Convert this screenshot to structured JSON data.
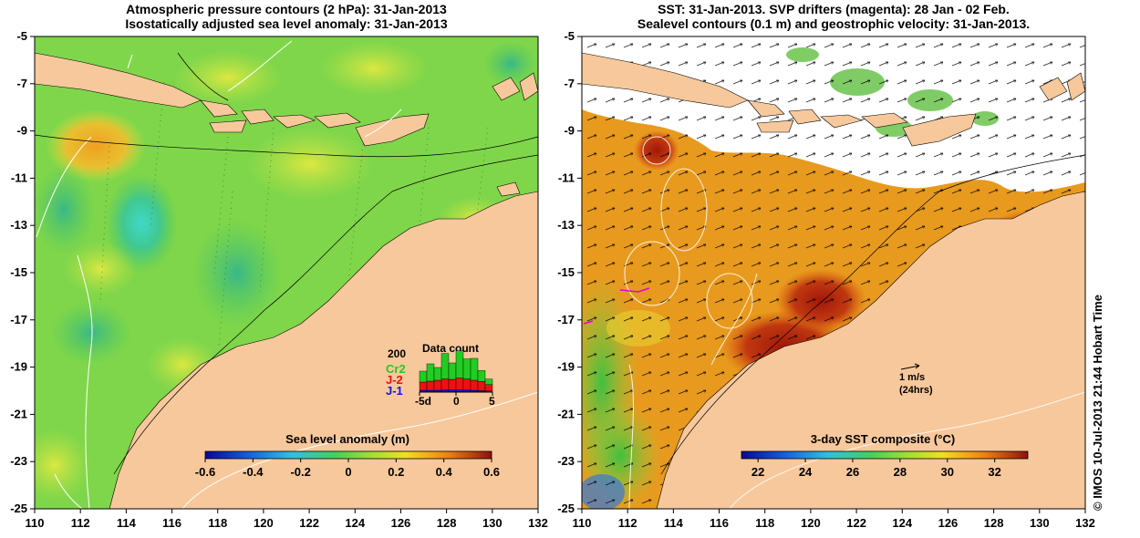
{
  "left": {
    "title_line1": "Atmospheric pressure contours (2 hPa): 31-Jan-2013",
    "title_line2": "Isostatically adjusted sea level anomaly: 31-Jan-2013",
    "colorbar_label": "Sea level anomaly (m)",
    "colorbar_ticks": [
      "-0.6",
      "-0.4",
      "-0.2",
      "0",
      "0.2",
      "0.4",
      "0.6"
    ],
    "data_count": {
      "title": "Data count",
      "max_label": "200",
      "legend": [
        {
          "label": "Cr2",
          "color": "#22cc22"
        },
        {
          "label": "J-2",
          "color": "#ee1111"
        },
        {
          "label": "J-1",
          "color": "#1111ee"
        }
      ],
      "xticks": [
        "-5d",
        "0",
        "5"
      ],
      "bins": [
        {
          "cr2": 60,
          "j2": 45,
          "j1": 10
        },
        {
          "cr2": 95,
          "j2": 50,
          "j1": 10
        },
        {
          "cr2": 70,
          "j2": 55,
          "j1": 10
        },
        {
          "cr2": 140,
          "j2": 60,
          "j1": 12
        },
        {
          "cr2": 90,
          "j2": 58,
          "j1": 12
        },
        {
          "cr2": 150,
          "j2": 65,
          "j1": 12
        },
        {
          "cr2": 110,
          "j2": 60,
          "j1": 12
        },
        {
          "cr2": 120,
          "j2": 55,
          "j1": 10
        },
        {
          "cr2": 60,
          "j2": 50,
          "j1": 8
        },
        {
          "cr2": 30,
          "j2": 35,
          "j1": 6
        }
      ]
    }
  },
  "right": {
    "title_line1": "SST: 31-Jan-2013. SVP drifters (magenta): 28 Jan - 02 Feb.",
    "title_line2": "Sealevel contours (0.1 m) and geostrophic velocity: 31-Jan-2013.",
    "colorbar_label": "3-day SST composite (°C)",
    "colorbar_ticks": [
      "22",
      "24",
      "26",
      "28",
      "30",
      "32"
    ],
    "scale_arrow_label1": "1 m/s",
    "scale_arrow_label2": "(24hrs)"
  },
  "axes": {
    "x_ticks": [
      "110",
      "112",
      "114",
      "116",
      "118",
      "120",
      "122",
      "124",
      "126",
      "128",
      "130",
      "132"
    ],
    "y_ticks": [
      "-5",
      "-7",
      "-9",
      "-11",
      "-13",
      "-15",
      "-17",
      "-19",
      "-21",
      "-23",
      "-25"
    ],
    "lon_range": [
      110,
      132
    ],
    "lat_range": [
      -25,
      -5
    ]
  },
  "credit": "© IMOS 10-Jul-2013 21:44 Hobart Time",
  "colors": {
    "land": "#f7c89b",
    "left_sea": "#7fd64a",
    "right_sea": "#e89a1e",
    "cloud": "#ffffff"
  }
}
